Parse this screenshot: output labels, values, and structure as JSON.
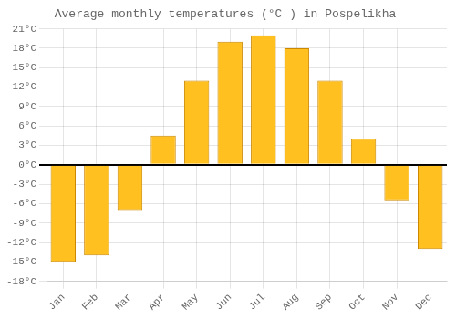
{
  "chart_data": {
    "type": "bar",
    "title": "Average monthly temperatures (°C ) in Pospelikha",
    "categories": [
      "Jan",
      "Feb",
      "Mar",
      "Apr",
      "May",
      "Jun",
      "Jul",
      "Aug",
      "Sep",
      "Oct",
      "Nov",
      "Dec"
    ],
    "values": [
      -15,
      -14,
      -7,
      4.5,
      13,
      19,
      20,
      18,
      13,
      4,
      -5.5,
      -13
    ],
    "color": "#FFC020",
    "ylim": [
      -18,
      21
    ],
    "yticks": [
      {
        "value": -18,
        "label": "-18°C"
      },
      {
        "value": -15,
        "label": "-15°C"
      },
      {
        "value": -12,
        "label": "-12°C"
      },
      {
        "value": -9,
        "label": "-9°C"
      },
      {
        "value": -6,
        "label": "-6°C"
      },
      {
        "value": -3,
        "label": "-3°C"
      },
      {
        "value": 0,
        "label": "0°C"
      },
      {
        "value": 3,
        "label": "3°C"
      },
      {
        "value": 6,
        "label": "6°C"
      },
      {
        "value": 9,
        "label": "9°C"
      },
      {
        "value": 12,
        "label": "12°C"
      },
      {
        "value": 15,
        "label": "15°C"
      },
      {
        "value": 18,
        "label": "18°C"
      },
      {
        "value": 21,
        "label": "21°C"
      }
    ],
    "grid": true
  }
}
